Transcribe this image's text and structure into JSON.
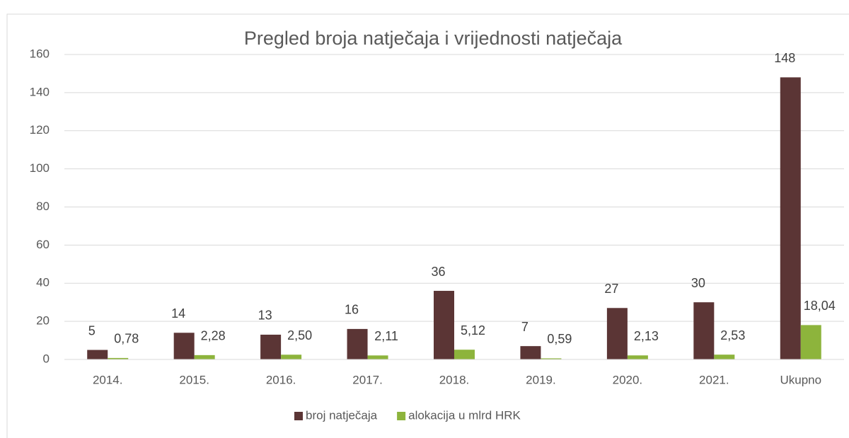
{
  "chart_data": {
    "type": "bar",
    "title": "Pregled broja natječaja i vrijednosti natječaja",
    "categories": [
      "2014.",
      "2015.",
      "2016.",
      "2017.",
      "2018.",
      "2019.",
      "2020.",
      "2021.",
      "Ukupno"
    ],
    "series": [
      {
        "name": "broj natječaja",
        "color": "#5b3535",
        "values": [
          5,
          14,
          13,
          16,
          36,
          7,
          27,
          30,
          148
        ]
      },
      {
        "name": "alokacija u mlrd HRK",
        "color": "#8db43c",
        "values": [
          0.78,
          2.28,
          2.5,
          2.11,
          5.12,
          0.59,
          2.13,
          2.53,
          18.04
        ],
        "value_labels": [
          "0,78",
          "2,28",
          "2,50",
          "2,11",
          "5,12",
          "0,59",
          "2,13",
          "2,53",
          "18,04"
        ]
      }
    ],
    "ylim": [
      0,
      160
    ],
    "yticks": [
      0,
      20,
      40,
      60,
      80,
      100,
      120,
      140,
      160
    ],
    "grid": true,
    "legend": "bottom"
  }
}
